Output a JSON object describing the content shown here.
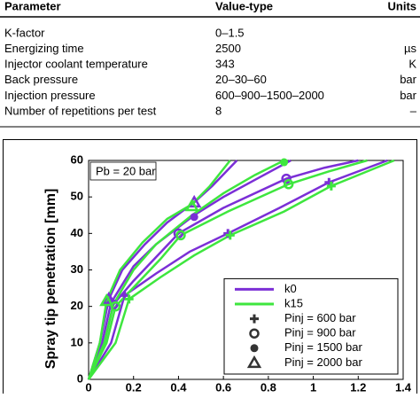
{
  "table": {
    "columns": [
      "Parameter",
      "Value-type",
      "Units"
    ],
    "rows": [
      [
        "K-factor",
        "0–1.5",
        ""
      ],
      [
        "Energizing time",
        "2500",
        "µs"
      ],
      [
        "Injector coolant temperature",
        "343",
        "K"
      ],
      [
        "Back pressure",
        "20–30–60",
        "bar"
      ],
      [
        "Injection pressure",
        "600–900–1500–2000",
        "bar"
      ],
      [
        "Number of repetitions per test",
        "8",
        "–"
      ]
    ]
  },
  "chart_data": {
    "type": "line",
    "ylabel": "Spray tip penetration [mm]",
    "annotation": "Pb = 20 bar",
    "xlim": [
      0,
      1.4
    ],
    "ylim": [
      0,
      60
    ],
    "xticks": [
      0,
      0.2,
      0.4,
      0.6,
      0.8,
      1,
      1.2,
      1.4
    ],
    "yticks": [
      0,
      10,
      20,
      30,
      40,
      50,
      60
    ],
    "legend": "lower right",
    "pressures": [
      {
        "name": "Pinj = 600 bar",
        "marker": "plus"
      },
      {
        "name": "Pinj = 900 bar",
        "marker": "circle"
      },
      {
        "name": "Pinj = 1500 bar",
        "marker": "dot"
      },
      {
        "name": "Pinj = 2000 bar",
        "marker": "triangle"
      }
    ],
    "series": [
      {
        "name": "k0",
        "color": "#7b2fd6",
        "curves": [
          {
            "x": [
              0,
              0.1,
              0.16,
              0.3,
              0.45,
              0.62,
              0.85,
              1.07,
              1.33
            ],
            "y": [
              0,
              10,
              23,
              29,
              35,
              40,
              47,
              54,
              60
            ],
            "marker_x": [
              0.16,
              0.62,
              1.07
            ],
            "marker_y": [
              23,
              40,
              54
            ]
          },
          {
            "x": [
              0,
              0.07,
              0.11,
              0.2,
              0.3,
              0.4,
              0.6,
              0.88,
              1.05,
              1.2
            ],
            "y": [
              0,
              10,
              20.5,
              27,
              33.5,
              40,
              47,
              55,
              58,
              60
            ],
            "marker_x": [
              0.11,
              0.4,
              0.88
            ],
            "marker_y": [
              20.5,
              40,
              55
            ]
          },
          {
            "x": [
              0,
              0.06,
              0.1,
              0.2,
              0.3,
              0.47,
              0.6,
              0.75,
              0.9
            ],
            "y": [
              0,
              10,
              21,
              31,
              37,
              45,
              50,
              55,
              60
            ],
            "marker_x": [
              0.1,
              0.47
            ],
            "marker_y": [
              21,
              44.5
            ]
          },
          {
            "x": [
              0,
              0.05,
              0.09,
              0.15,
              0.25,
              0.35,
              0.47,
              0.55,
              0.66
            ],
            "y": [
              0,
              10,
              22,
              30,
              37,
              43,
              48.5,
              53,
              60
            ],
            "marker_x": [
              0.09,
              0.47
            ],
            "marker_y": [
              22,
              48.5
            ]
          }
        ]
      },
      {
        "name": "k15",
        "color": "#3ee63e",
        "curves": [
          {
            "x": [
              0,
              0.12,
              0.18,
              0.32,
              0.47,
              0.63,
              0.87,
              1.08,
              1.36
            ],
            "y": [
              0,
              10,
              22,
              28,
              34,
              39.5,
              46,
              53,
              60
            ],
            "marker_x": [
              0.18,
              0.63,
              1.08
            ],
            "marker_y": [
              22,
              39.5,
              53
            ]
          },
          {
            "x": [
              0,
              0.08,
              0.12,
              0.22,
              0.32,
              0.41,
              0.62,
              0.89,
              1.07,
              1.24
            ],
            "y": [
              0,
              10,
              20,
              26.5,
              33,
              39.5,
              46,
              53.5,
              57,
              60
            ],
            "marker_x": [
              0.12,
              0.41,
              0.89
            ],
            "marker_y": [
              20,
              39.5,
              53.5
            ]
          },
          {
            "x": [
              0,
              0.07,
              0.11,
              0.2,
              0.3,
              0.46,
              0.6,
              0.74,
              0.87
            ],
            "y": [
              0,
              10,
              20.5,
              30,
              37,
              45,
              51,
              56,
              60
            ],
            "marker_x": [
              0.87
            ],
            "marker_y": [
              59.5
            ]
          },
          {
            "x": [
              0,
              0.05,
              0.08,
              0.14,
              0.24,
              0.35,
              0.46,
              0.54,
              0.63
            ],
            "y": [
              0,
              10,
              21.5,
              30,
              37.5,
              44,
              48,
              53,
              60
            ],
            "marker_x": [
              0.08,
              0.46
            ],
            "marker_y": [
              21.5,
              47.5
            ]
          }
        ]
      }
    ]
  }
}
